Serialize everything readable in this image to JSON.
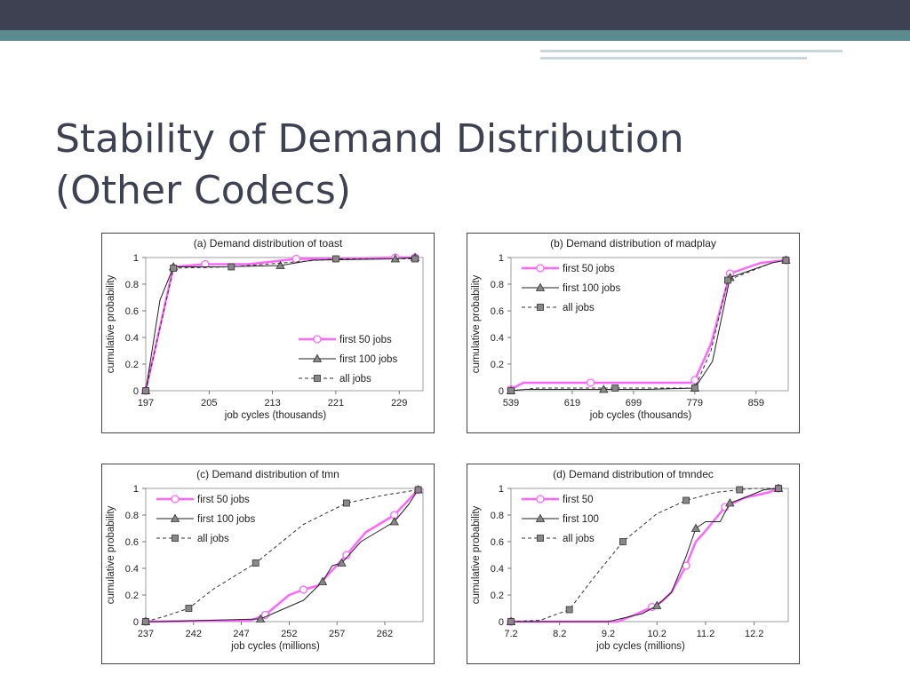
{
  "slide": {
    "title_line1": "Stability of Demand Distribution",
    "title_line2": "(Other Codecs)"
  },
  "chart_data": [
    {
      "type": "line",
      "title": "(a) Demand distribution of toast",
      "xlabel": "job cycles (thousands)",
      "ylabel": "cumulative probability",
      "xlim": [
        197,
        232
      ],
      "ylim": [
        0,
        1
      ],
      "xticks": [
        "197",
        "205",
        "213",
        "221",
        "229"
      ],
      "yticks": [
        "0",
        "0.2",
        "0.4",
        "0.6",
        "0.8",
        "1"
      ],
      "legend": "bottom-right",
      "series": [
        {
          "name": "first 50 jobs",
          "color": "#ff66ff",
          "marker": "circle",
          "dash": "solid",
          "width": 2.5,
          "x": [
            197,
            200.5,
            204.5,
            210,
            216,
            221,
            228.5,
            231
          ],
          "y": [
            0,
            0.93,
            0.95,
            0.95,
            0.99,
            0.99,
            1,
            1
          ]
        },
        {
          "name": "first 100 jobs",
          "color": "#222222",
          "marker": "triangle",
          "dash": "solid",
          "width": 1,
          "x": [
            197,
            198.8,
            200.5,
            206.5,
            214,
            218,
            228.5,
            231
          ],
          "y": [
            0,
            0.68,
            0.93,
            0.93,
            0.94,
            0.98,
            0.99,
            1
          ]
        },
        {
          "name": "all jobs",
          "color": "#333333",
          "marker": "square",
          "dash": "dashed",
          "width": 1,
          "x": [
            197,
            200.5,
            207.8,
            221,
            231
          ],
          "y": [
            0,
            0.92,
            0.93,
            0.99,
            0.99
          ]
        }
      ]
    },
    {
      "type": "line",
      "title": "(b) Demand distribution of madplay",
      "xlabel": "job cycles (thousands)",
      "ylabel": "cumulative probability",
      "xlim": [
        539,
        901
      ],
      "ylim": [
        0,
        1
      ],
      "xticks": [
        "539",
        "619",
        "699",
        "779",
        "859"
      ],
      "yticks": [
        "0",
        "0.2",
        "0.4",
        "0.6",
        "0.8",
        "1"
      ],
      "legend": "top-left",
      "series": [
        {
          "name": "first 50 jobs",
          "color": "#ff66ff",
          "marker": "circle",
          "dash": "solid",
          "width": 2.5,
          "x": [
            539,
            555,
            643,
            774,
            779,
            800,
            825,
            865,
            898
          ],
          "y": [
            0.01,
            0.06,
            0.06,
            0.06,
            0.08,
            0.35,
            0.88,
            0.96,
            0.98
          ]
        },
        {
          "name": "first 100 jobs",
          "color": "#222222",
          "marker": "triangle",
          "dash": "solid",
          "width": 1,
          "x": [
            539,
            558,
            660,
            718,
            779,
            802,
            825,
            880,
            898
          ],
          "y": [
            0,
            0.01,
            0.01,
            0.01,
            0.02,
            0.22,
            0.85,
            0.96,
            0.98
          ]
        },
        {
          "name": "all jobs",
          "color": "#333333",
          "marker": "square",
          "dash": "dashed",
          "width": 1,
          "x": [
            539,
            574,
            675,
            710,
            779,
            800,
            822,
            880,
            898
          ],
          "y": [
            0,
            0.02,
            0.02,
            0.02,
            0.02,
            0.3,
            0.83,
            0.96,
            0.98
          ]
        }
      ]
    },
    {
      "type": "line",
      "title": "(c) Demand distribution of tmn",
      "xlabel": "job cycles (millions)",
      "ylabel": "cumulative probability",
      "xlim": [
        237,
        266
      ],
      "ylim": [
        0,
        1
      ],
      "xticks": [
        "237",
        "242",
        "247",
        "252",
        "257",
        "262"
      ],
      "yticks": [
        "0",
        "0.2",
        "0.4",
        "0.6",
        "0.8",
        "1"
      ],
      "legend": "top-left",
      "series": [
        {
          "name": "first 50 jobs",
          "color": "#ff66ff",
          "marker": "circle",
          "dash": "solid",
          "width": 2.5,
          "x": [
            237,
            248,
            249.5,
            252,
            253.5,
            255,
            258,
            260,
            263,
            265.5
          ],
          "y": [
            0,
            0.01,
            0.05,
            0.2,
            0.24,
            0.27,
            0.5,
            0.67,
            0.8,
            0.99
          ]
        },
        {
          "name": "first 100 jobs",
          "color": "#222222",
          "marker": "triangle",
          "dash": "solid",
          "width": 1,
          "x": [
            237,
            238.5,
            249,
            253.5,
            255.5,
            256.5,
            257.5,
            259.5,
            263,
            264.5,
            265.5
          ],
          "y": [
            0,
            0,
            0.02,
            0.16,
            0.3,
            0.42,
            0.44,
            0.6,
            0.75,
            0.88,
            0.99
          ]
        },
        {
          "name": "all jobs",
          "color": "#333333",
          "marker": "square",
          "dash": "dashed",
          "width": 1,
          "x": [
            237,
            239,
            241.5,
            244,
            248.5,
            253.5,
            258,
            262,
            265.5
          ],
          "y": [
            0,
            0.04,
            0.1,
            0.24,
            0.44,
            0.73,
            0.89,
            0.95,
            0.99
          ]
        }
      ]
    },
    {
      "type": "line",
      "title": "(d) Demand distribution of tmndec",
      "xlabel": "job cycles (millions)",
      "ylabel": "cumulative probability",
      "xlim": [
        7.2,
        12.9
      ],
      "ylim": [
        0,
        1
      ],
      "xticks": [
        "7.2",
        "8.2",
        "9.2",
        "10.2",
        "11.2",
        "12.2"
      ],
      "yticks": [
        "0",
        "0.2",
        "0.4",
        "0.6",
        "0.8",
        "1"
      ],
      "legend": "top-left",
      "series": [
        {
          "name": "first 50",
          "color": "#ff66ff",
          "marker": "circle",
          "dash": "solid",
          "width": 2.5,
          "x": [
            7.2,
            9.4,
            9.8,
            10.1,
            10.3,
            10.5,
            10.8,
            11.0,
            11.2,
            11.6,
            12.0,
            12.5,
            12.7
          ],
          "y": [
            0,
            0,
            0.06,
            0.11,
            0.15,
            0.22,
            0.42,
            0.6,
            0.68,
            0.86,
            0.93,
            0.97,
            1
          ]
        },
        {
          "name": "first 100",
          "color": "#222222",
          "marker": "triangle",
          "dash": "solid",
          "width": 1,
          "x": [
            7.2,
            9.2,
            9.9,
            10.2,
            10.5,
            10.8,
            11.0,
            11.2,
            11.5,
            11.7,
            12.0,
            12.4,
            12.7
          ],
          "y": [
            0,
            0,
            0.06,
            0.12,
            0.22,
            0.49,
            0.7,
            0.75,
            0.75,
            0.89,
            0.93,
            0.99,
            1
          ]
        },
        {
          "name": "all jobs",
          "color": "#333333",
          "marker": "square",
          "dash": "dashed",
          "width": 1,
          "x": [
            7.2,
            7.8,
            8.4,
            8.9,
            9.5,
            10.2,
            10.8,
            11.4,
            11.9,
            12.2,
            12.7
          ],
          "y": [
            0,
            0.01,
            0.09,
            0.33,
            0.6,
            0.81,
            0.91,
            0.97,
            0.99,
            1,
            1
          ]
        }
      ]
    }
  ]
}
